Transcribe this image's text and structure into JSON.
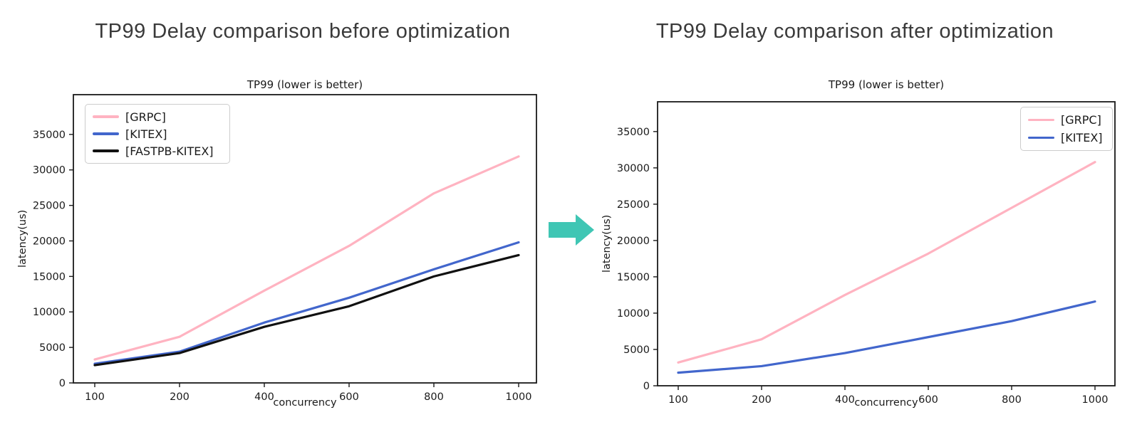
{
  "headings": {
    "before": "TP99 Delay comparison before optimization",
    "after": "TP99 Delay comparison after optimization"
  },
  "arrow": {
    "name": "right-arrow",
    "color": "#3fc6b4"
  },
  "colors": {
    "grpc_pink": "#ffb3c1",
    "kitex_blue": "#4266cc",
    "fastpb_black": "#111111",
    "axis": "#1a1a1a",
    "heading_text": "#3a3a3a"
  },
  "chart_data": [
    {
      "type": "line",
      "title": "TP99 (lower is better)",
      "xlabel": "concurrency",
      "ylabel": "latency(us)",
      "categories": [
        100,
        200,
        400,
        600,
        800,
        1000
      ],
      "yticks": [
        0,
        5000,
        10000,
        15000,
        20000,
        25000,
        30000,
        35000
      ],
      "ylim": [
        0,
        40600
      ],
      "grid": false,
      "legend_position": "upper-left",
      "series": [
        {
          "name": "[GRPC]",
          "color": "#ffb3c1",
          "values": [
            3300,
            6500,
            13000,
            19300,
            26700,
            31900
          ]
        },
        {
          "name": "[KITEX]",
          "color": "#4266cc",
          "values": [
            2700,
            4400,
            8500,
            12000,
            16000,
            19800
          ]
        },
        {
          "name": "[FASTPB-KITEX]",
          "color": "#111111",
          "values": [
            2500,
            4200,
            7900,
            10800,
            15000,
            18000
          ]
        }
      ]
    },
    {
      "type": "line",
      "title": "TP99 (lower is better)",
      "xlabel": "concurrency",
      "ylabel": "latency(us)",
      "categories": [
        100,
        200,
        400,
        600,
        800,
        1000
      ],
      "yticks": [
        0,
        5000,
        10000,
        15000,
        20000,
        25000,
        30000,
        35000
      ],
      "ylim": [
        0,
        39100
      ],
      "grid": false,
      "legend_position": "upper-right",
      "series": [
        {
          "name": "[GRPC]",
          "color": "#ffb3c1",
          "values": [
            3200,
            6400,
            12500,
            18200,
            24500,
            30800
          ]
        },
        {
          "name": "[KITEX]",
          "color": "#4266cc",
          "values": [
            1800,
            2700,
            4500,
            6700,
            8900,
            11600
          ]
        }
      ]
    }
  ]
}
